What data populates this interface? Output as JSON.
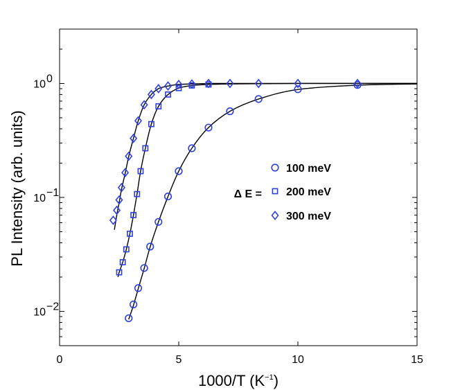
{
  "chart_data": {
    "type": "scatter",
    "title": "",
    "xlabel": "1000/T (K−1)",
    "xlabel_main": "1000/T (K",
    "xlabel_sup": "−1",
    "xlabel_close": ")",
    "ylabel": "PL Intensity (arb. units)",
    "xlim": [
      0,
      15
    ],
    "ylim": [
      0.005,
      3
    ],
    "yscale": "log",
    "grid": false,
    "x_ticks": [
      0,
      5,
      10,
      15
    ],
    "x_tick_labels": [
      "0",
      "5",
      "10",
      "15"
    ],
    "y_ticks": [
      0.01,
      0.1,
      1
    ],
    "y_tick_labels": [
      {
        "base": "10",
        "exp": "−2"
      },
      {
        "base": "10",
        "exp": "−1"
      },
      {
        "base": "10",
        "exp": "0"
      }
    ],
    "legend": {
      "placement": "center-right",
      "prefix": "Δ E ="
    },
    "series": [
      {
        "name": "100 meV",
        "marker": "circle",
        "x": [
          2.9,
          3.1,
          3.3,
          3.55,
          3.8,
          4.15,
          4.55,
          5.0,
          5.55,
          6.25,
          7.15,
          8.35,
          10.0,
          12.5
        ],
        "y": [
          0.0087,
          0.0115,
          0.016,
          0.024,
          0.037,
          0.061,
          0.102,
          0.17,
          0.27,
          0.41,
          0.57,
          0.73,
          0.89,
          0.97
        ]
      },
      {
        "name": "200 meV",
        "marker": "square",
        "x": [
          2.5,
          2.65,
          2.8,
          2.95,
          3.1,
          3.25,
          3.4,
          3.6,
          3.85,
          4.15,
          4.55,
          5.0,
          5.55,
          6.25
        ],
        "y": [
          0.022,
          0.027,
          0.035,
          0.048,
          0.07,
          0.107,
          0.17,
          0.27,
          0.44,
          0.63,
          0.8,
          0.91,
          0.96,
          0.98
        ]
      },
      {
        "name": "300 meV",
        "marker": "diamond",
        "x": [
          2.25,
          2.4,
          2.5,
          2.6,
          2.75,
          2.9,
          3.1,
          3.3,
          3.55,
          3.85,
          4.15,
          4.55,
          5.0,
          5.55,
          6.25,
          7.15,
          8.35,
          10.0,
          12.5
        ],
        "y": [
          0.063,
          0.077,
          0.095,
          0.122,
          0.165,
          0.23,
          0.33,
          0.47,
          0.65,
          0.8,
          0.9,
          0.95,
          0.98,
          0.99,
          1.0,
          1.0,
          1.0,
          1.0,
          1.0
        ]
      }
    ],
    "fit_curves": [
      {
        "name": "100 meV fit",
        "x": [
          2.9,
          3.1,
          3.3,
          3.55,
          3.8,
          4.15,
          4.55,
          5.0,
          5.55,
          6.25,
          7.15,
          8.35,
          10.0,
          12.5,
          15.0
        ],
        "y": [
          0.0085,
          0.0113,
          0.0158,
          0.0238,
          0.0368,
          0.061,
          0.102,
          0.17,
          0.27,
          0.41,
          0.57,
          0.73,
          0.885,
          0.965,
          0.99
        ]
      },
      {
        "name": "200 meV fit",
        "x": [
          2.45,
          2.5,
          2.65,
          2.8,
          2.95,
          3.1,
          3.25,
          3.4,
          3.6,
          3.85,
          4.15,
          4.55,
          5.0,
          5.55,
          6.25,
          7.15,
          8.35,
          10.0,
          12.5,
          15.0
        ],
        "y": [
          0.02,
          0.022,
          0.027,
          0.035,
          0.048,
          0.07,
          0.107,
          0.17,
          0.27,
          0.44,
          0.63,
          0.8,
          0.91,
          0.96,
          0.98,
          0.99,
          0.995,
          1.0,
          1.0,
          1.0
        ]
      },
      {
        "name": "300 meV fit",
        "x": [
          2.3,
          2.4,
          2.5,
          2.6,
          2.75,
          2.9,
          3.1,
          3.3,
          3.55,
          3.85,
          4.15,
          4.55,
          5.0,
          5.55,
          6.25,
          7.15,
          8.35,
          10.0,
          12.5,
          15.0
        ],
        "y": [
          0.052,
          0.07,
          0.09,
          0.118,
          0.162,
          0.228,
          0.33,
          0.47,
          0.65,
          0.8,
          0.9,
          0.95,
          0.98,
          0.99,
          1.0,
          1.0,
          1.0,
          1.0,
          1.0,
          1.0
        ]
      }
    ]
  },
  "colors": {
    "marker": "#2b3fe0",
    "fit_line": "#000000",
    "axes": "#000000",
    "background": "#ffffff"
  }
}
